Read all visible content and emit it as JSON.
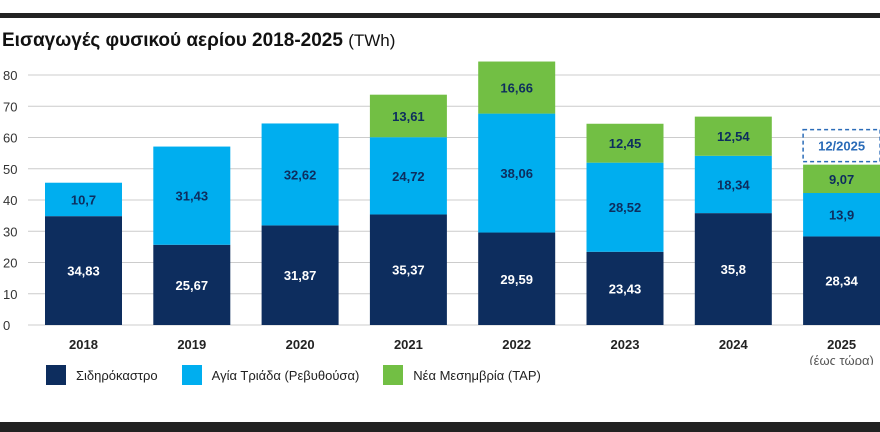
{
  "title": {
    "main": "Εισαγωγές φυσικού αερίου 2018-2025",
    "unit": "(TWh)"
  },
  "colors": {
    "sidirokastro": "#0d2d5e",
    "agia_triada": "#00aeef",
    "tap": "#72bf44",
    "callout": "#2b6cb8",
    "grid": "#cccccc"
  },
  "chart_data": {
    "type": "bar",
    "stacked": true,
    "title": "Εισαγωγές φυσικού αερίου 2018-2025 (TWh)",
    "categories": [
      "2018",
      "2019",
      "2020",
      "2021",
      "2022",
      "2023",
      "2024",
      "2025"
    ],
    "category_sublabels": [
      "",
      "",
      "",
      "",
      "",
      "",
      "",
      "(έως τώρα)"
    ],
    "ylim": [
      0,
      80
    ],
    "yticks": [
      0,
      10,
      20,
      30,
      40,
      50,
      60,
      70,
      80
    ],
    "grid": true,
    "series": [
      {
        "name": "Σιδηρόκαστρο",
        "color_key": "sidirokastro",
        "values": [
          34.83,
          25.67,
          31.87,
          35.37,
          29.59,
          23.43,
          35.8,
          28.34
        ],
        "labels": [
          "34,83",
          "25,67",
          "31,87",
          "35,37",
          "29,59",
          "23,43",
          "35,8",
          "28,34"
        ]
      },
      {
        "name": "Αγία Τριάδα (Ρεβυθούσα)",
        "color_key": "agia_triada",
        "values": [
          10.7,
          31.43,
          32.62,
          24.72,
          38.06,
          28.52,
          18.34,
          13.9
        ],
        "labels": [
          "10,7",
          "31,43",
          "32,62",
          "24,72",
          "38,06",
          "28,52",
          "18,34",
          "13,9"
        ]
      },
      {
        "name": "Νέα Μεσημβρία (TAP)",
        "color_key": "tap",
        "values": [
          null,
          null,
          null,
          13.61,
          16.66,
          12.45,
          12.54,
          9.07
        ],
        "labels": [
          "",
          "",
          "",
          "13,61",
          "16,66",
          "12,45",
          "12,54",
          "9,07"
        ]
      }
    ],
    "annotations": [
      {
        "category": "2025",
        "text": "12/2025"
      }
    ]
  },
  "legend": [
    {
      "label": "Σιδηρόκαστρο",
      "color_key": "sidirokastro"
    },
    {
      "label": "Αγία Τριάδα (Ρεβυθούσα)",
      "color_key": "agia_triada"
    },
    {
      "label": "Νέα Μεσημβρία (TAP)",
      "color_key": "tap"
    }
  ]
}
